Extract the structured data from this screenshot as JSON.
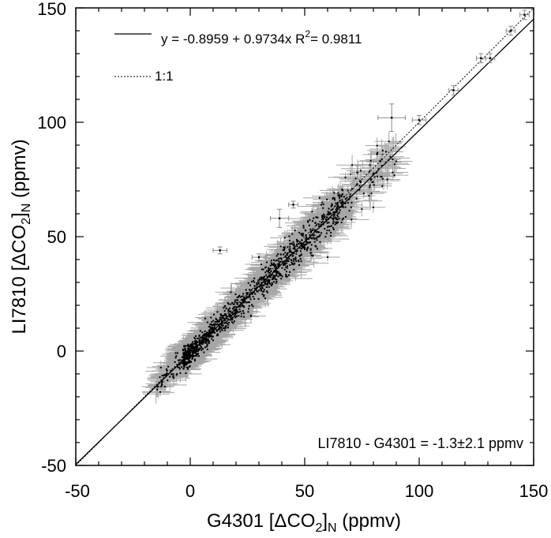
{
  "chart_data": {
    "type": "scatter",
    "x_axis": {
      "label_main": "G4301 [ΔCO",
      "label_sub1": "2",
      "label_close": "]",
      "label_sub2": "N",
      "label_unit": " (ppmv)",
      "range": [
        -50,
        150
      ],
      "ticks": [
        -50,
        0,
        50,
        100,
        150
      ]
    },
    "y_axis": {
      "label_main": "LI7810 [ΔCO",
      "label_sub1": "2",
      "label_close": "]",
      "label_sub2": "N",
      "label_unit": " (ppmv)",
      "range": [
        -50,
        150
      ],
      "ticks": [
        -50,
        0,
        50,
        100,
        150
      ]
    },
    "legend": {
      "position": "top-left",
      "fit_prefix": "y = -0.8959 + 0.9734x   R",
      "fit_sup": "2",
      "fit_suffix": "= 0.9811",
      "one_to_one": "1:1"
    },
    "annotation": "LI7810 - G4301 = -1.3±2.1 ppmv",
    "fit": {
      "intercept": -0.8959,
      "slope": 0.9734,
      "r2": 0.9811
    },
    "one_to_one_line": true,
    "colors": {
      "points": "#000000",
      "error_bars": "#a6a6a6",
      "lines": "#000000"
    },
    "highlighted_points": [
      {
        "x": 13,
        "y": 44,
        "xerr": 3,
        "yerr": 1.5
      },
      {
        "x": 39,
        "y": 58,
        "xerr": 4,
        "yerr": 4
      },
      {
        "x": 45,
        "y": 64,
        "xerr": 2,
        "yerr": 1.5
      },
      {
        "x": 30,
        "y": 41,
        "xerr": 3,
        "yerr": 1.5
      },
      {
        "x": 88,
        "y": 102,
        "xerr": 6,
        "yerr": 6
      },
      {
        "x": 100,
        "y": 101,
        "xerr": 3,
        "yerr": 2
      },
      {
        "x": 115,
        "y": 114,
        "xerr": 2,
        "yerr": 2
      },
      {
        "x": 127,
        "y": 128,
        "xerr": 2,
        "yerr": 2
      },
      {
        "x": 131,
        "y": 128,
        "xerr": 2,
        "yerr": 2
      },
      {
        "x": 140,
        "y": 140,
        "xerr": 2,
        "yerr": 2
      },
      {
        "x": 146,
        "y": 147,
        "xerr": 2,
        "yerr": 2
      },
      {
        "x": 83,
        "y": 83,
        "xerr": 3,
        "yerr": 3
      },
      {
        "x": 73,
        "y": 78,
        "xerr": 3,
        "yerr": 3
      }
    ]
  }
}
